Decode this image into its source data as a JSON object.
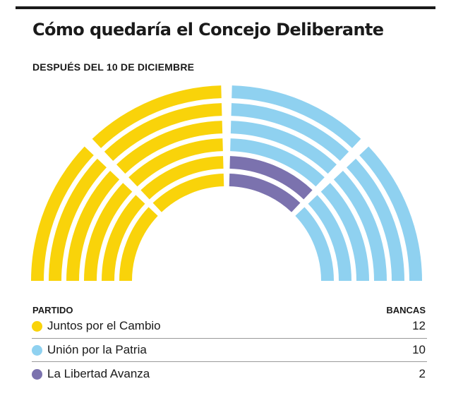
{
  "title": "Cómo quedaría el Concejo Deliberante",
  "subtitle": "DESPUÉS DEL 10 DE DICIEMBRE",
  "legend": {
    "party_header": "PARTIDO",
    "seats_header": "BANCAS"
  },
  "chart_data": {
    "type": "parliament",
    "total_seats": 24,
    "rows": 6,
    "series": [
      {
        "name": "Juntos por el Cambio",
        "value": 12,
        "color": "#f9d30a"
      },
      {
        "name": "Unión por la Patria",
        "value": 10,
        "color": "#8fd1f0"
      },
      {
        "name": "La Libertad Avanza",
        "value": 2,
        "color": "#7b72ae"
      }
    ]
  }
}
